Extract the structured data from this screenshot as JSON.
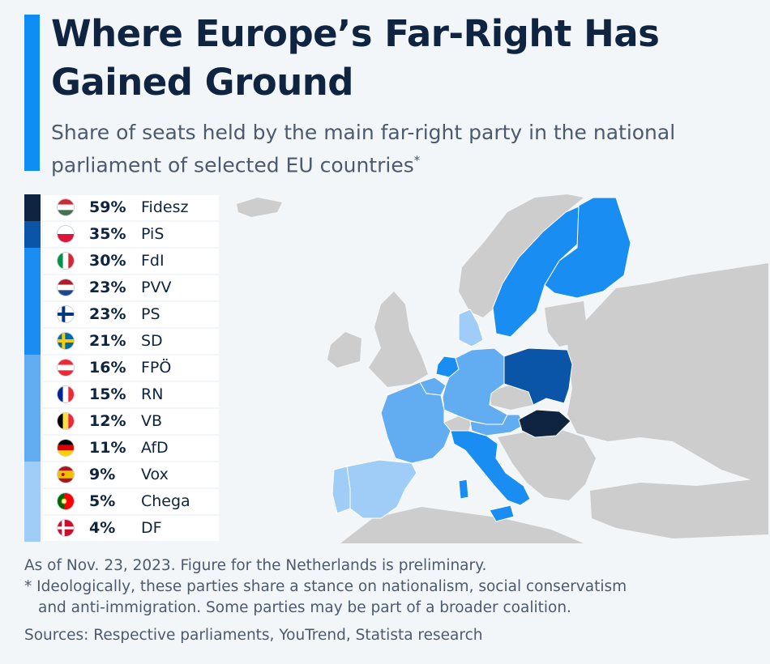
{
  "title": "Where Europe’s Far-Right Has Gained Ground",
  "subtitle": "Share of seats held by the main far-right party in the national parliament of selected EU countries",
  "subtitle_mark": "*",
  "colors": {
    "accent": "#0e8df4",
    "tier_50_plus": "#0e2440",
    "tier_30_50": "#0a55a8",
    "tier_20_30": "#1a8df2",
    "tier_10_20": "#62acf2",
    "tier_under_10": "#9fcdf7",
    "other_land": "#cdcdcd",
    "sea": "#f3f6f9"
  },
  "legend": [
    {
      "flag": "hungary-flag-icon",
      "value": "59%",
      "party": "Fidesz",
      "tier": "tier_50_plus"
    },
    {
      "flag": "poland-flag-icon",
      "value": "35%",
      "party": "PiS",
      "tier": "tier_30_50"
    },
    {
      "flag": "italy-flag-icon",
      "value": "30%",
      "party": "FdI",
      "tier": "tier_20_30"
    },
    {
      "flag": "netherlands-flag-icon",
      "value": "23%",
      "party": "PVV",
      "tier": "tier_20_30"
    },
    {
      "flag": "finland-flag-icon",
      "value": "23%",
      "party": "PS",
      "tier": "tier_20_30"
    },
    {
      "flag": "sweden-flag-icon",
      "value": "21%",
      "party": "SD",
      "tier": "tier_20_30"
    },
    {
      "flag": "austria-flag-icon",
      "value": "16%",
      "party": "FPÖ",
      "tier": "tier_10_20"
    },
    {
      "flag": "france-flag-icon",
      "value": "15%",
      "party": "RN",
      "tier": "tier_10_20"
    },
    {
      "flag": "belgium-flag-icon",
      "value": "12%",
      "party": "VB",
      "tier": "tier_10_20"
    },
    {
      "flag": "germany-flag-icon",
      "value": "11%",
      "party": "AfD",
      "tier": "tier_10_20"
    },
    {
      "flag": "spain-flag-icon",
      "value": "9%",
      "party": "Vox",
      "tier": "tier_under_10"
    },
    {
      "flag": "portugal-flag-icon",
      "value": "5%",
      "party": "Chega",
      "tier": "tier_under_10"
    },
    {
      "flag": "denmark-flag-icon",
      "value": "4%",
      "party": "DF",
      "tier": "tier_under_10"
    }
  ],
  "footer": {
    "note": "As of Nov. 23, 2023. Figure for the Netherlands is preliminary.",
    "asterisk_line1": "* Ideologically, these parties share a stance on nationalism, social conservatism",
    "asterisk_line2": "and anti-immigration. Some parties may be part of a broader coalition.",
    "sources": "Sources: Respective parliaments, YouTrend, Statista research"
  }
}
